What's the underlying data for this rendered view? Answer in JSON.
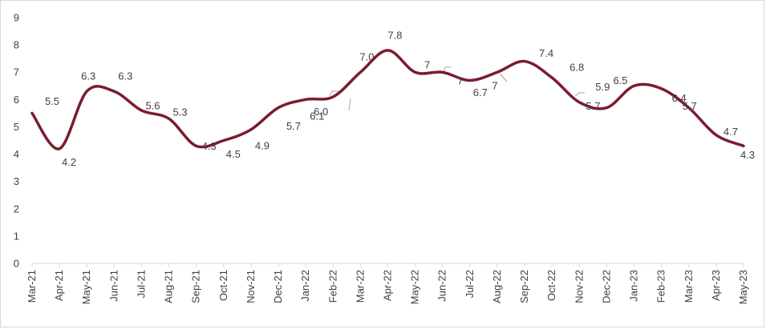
{
  "chart_data": {
    "type": "line",
    "title": "",
    "xlabel": "",
    "ylabel": "",
    "ylim": [
      0,
      9
    ],
    "y_ticks": [
      "0",
      "1",
      "2",
      "3",
      "4",
      "5",
      "6",
      "7",
      "8",
      "9"
    ],
    "grid": false,
    "legend": "none",
    "categories": [
      "Mar-21",
      "Apr-21",
      "May-21",
      "Jun-21",
      "Jul-21",
      "Aug-21",
      "Sep-21",
      "Oct-21",
      "Nov-21",
      "Dec-21",
      "Jan-22",
      "Feb-22",
      "Mar-22",
      "Apr-22",
      "May-22",
      "Jun-22",
      "Jul-22",
      "Aug-22",
      "Sep-22",
      "Oct-22",
      "Nov-22",
      "Dec-22",
      "Jan-23",
      "Feb-23",
      "Mar-23",
      "Apr-23",
      "May-23"
    ],
    "series": [
      {
        "color": "#7b1c2e",
        "values": [
          5.5,
          4.2,
          6.3,
          6.3,
          5.6,
          5.3,
          4.3,
          4.5,
          4.9,
          5.7,
          6.0,
          6.1,
          7.0,
          7.8,
          7.0,
          7.0,
          6.7,
          7.0,
          7.4,
          6.8,
          5.9,
          5.7,
          6.5,
          6.4,
          5.7,
          4.7,
          4.3
        ],
        "data_labels": [
          "5.5",
          "4.2",
          "6.3",
          "6.3",
          "5.6",
          "5.3",
          "4.3",
          "4.5",
          "4.9",
          "5.7",
          "6.0",
          "6.1",
          "7.0",
          "7.8",
          "7",
          "7",
          "6.7",
          "7",
          "7.4",
          "6.8",
          "5.9",
          "5.7",
          "6.5",
          "6.4",
          "5.7",
          "4.7",
          "4.3"
        ]
      }
    ]
  }
}
